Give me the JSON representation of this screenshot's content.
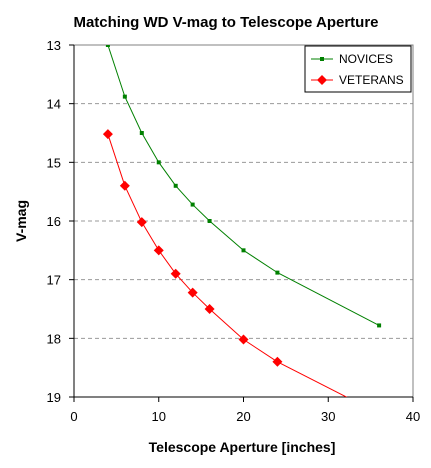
{
  "chart_data": {
    "type": "line",
    "title": "Matching WD V-mag to Telescope Aperture",
    "xlabel": "Telescope  Aperture [inches]",
    "ylabel": "V-mag",
    "xlim": [
      0,
      40
    ],
    "ylim": [
      13,
      19
    ],
    "y_inverted": true,
    "xticks": [
      "0",
      "10",
      "20",
      "30",
      "40"
    ],
    "yticks": [
      "13",
      "14",
      "15",
      "16",
      "17",
      "18",
      "19"
    ],
    "grid": "horizontal dashed",
    "legend_position": "top-right",
    "series": [
      {
        "name": "NOVICES",
        "color": "#008000",
        "marker": "square",
        "points": [
          [
            4,
            13.0
          ],
          [
            6,
            13.88
          ],
          [
            8,
            14.5
          ],
          [
            10,
            15.0
          ],
          [
            12,
            15.4
          ],
          [
            14,
            15.72
          ],
          [
            16,
            16.0
          ],
          [
            20,
            16.5
          ],
          [
            24,
            16.88
          ],
          [
            36,
            17.78
          ]
        ]
      },
      {
        "name": "VETERANS",
        "color": "#ff0000",
        "marker": "diamond",
        "points": [
          [
            4,
            14.52
          ],
          [
            6,
            15.4
          ],
          [
            8,
            16.02
          ],
          [
            10,
            16.5
          ],
          [
            12,
            16.9
          ],
          [
            14,
            17.22
          ],
          [
            16,
            17.5
          ],
          [
            20,
            18.02
          ],
          [
            24,
            18.4
          ],
          [
            33.5,
            19.1
          ]
        ]
      }
    ]
  }
}
